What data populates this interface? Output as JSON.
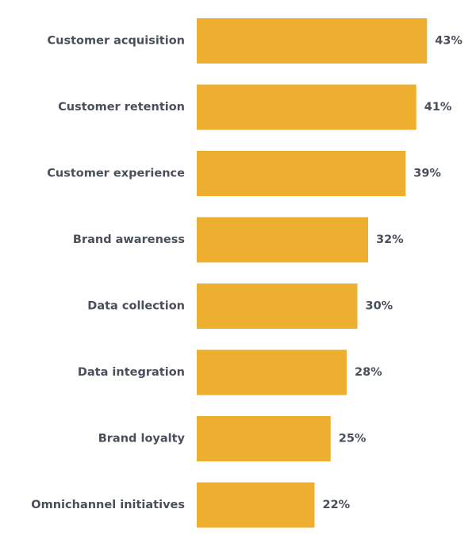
{
  "chart_data": {
    "type": "bar",
    "orientation": "horizontal",
    "categories": [
      "Customer acquisition",
      "Customer retention",
      "Customer experience",
      "Brand awareness",
      "Data collection",
      "Data integration",
      "Brand loyalty",
      "Omnichannel initiatives"
    ],
    "values": [
      43,
      41,
      39,
      32,
      30,
      28,
      25,
      22
    ],
    "value_labels": [
      "43%",
      "41%",
      "39%",
      "32%",
      "30%",
      "28%",
      "25%",
      "22%"
    ],
    "unit": "%",
    "xlim": [
      0,
      50
    ],
    "grid": false,
    "legend": "none"
  },
  "colors": {
    "bar": "#EEAF30",
    "label_text": "#4A4F5C",
    "background": "#FFFFFF"
  }
}
